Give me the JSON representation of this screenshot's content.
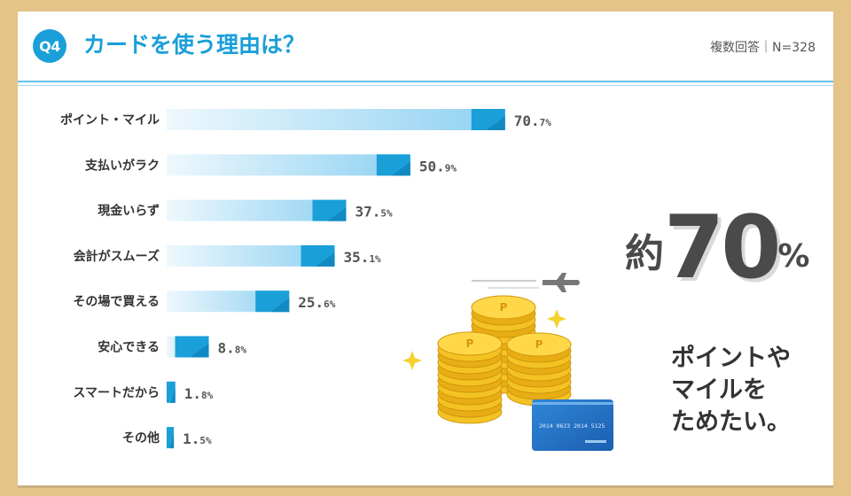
{
  "header": {
    "badge": "Q4",
    "title": "カードを使う理由は？",
    "meta": "複数回答｜N=328"
  },
  "colors": {
    "accent": "#1a9fd9",
    "bar_light": "#e3f4fc",
    "bar_mid": "#8fd1f1",
    "bar_tip": "#1a9fd9",
    "background": "#e5c489"
  },
  "chart_data": {
    "type": "bar",
    "orientation": "horizontal",
    "categories": [
      "ポイント・マイル",
      "支払いがラク",
      "現金いらず",
      "会計がスムーズ",
      "その場で買える",
      "安心できる",
      "スマートだから",
      "その他"
    ],
    "values": [
      70.7,
      50.9,
      37.5,
      35.1,
      25.6,
      8.8,
      1.8,
      1.5
    ],
    "value_labels_int": [
      "70.",
      "50.",
      "37.",
      "35.",
      "25.",
      "8.",
      "1.",
      "1."
    ],
    "value_labels_dec": [
      "7%",
      "9%",
      "5%",
      "1%",
      "6%",
      "8%",
      "8%",
      "5%"
    ],
    "xlim": [
      0,
      100
    ],
    "grid": false
  },
  "callout": {
    "prefix": "約",
    "number": "70",
    "suffix": "%",
    "lines": [
      "ポイントや",
      "マイルを",
      "ためたい。"
    ]
  },
  "illustration": {
    "icons": [
      "airplane-icon",
      "coin-stack-icon",
      "credit-card-icon",
      "sparkle-icon"
    ],
    "coin_mark": "P",
    "card_number": "2014 0623 2014 5125"
  }
}
